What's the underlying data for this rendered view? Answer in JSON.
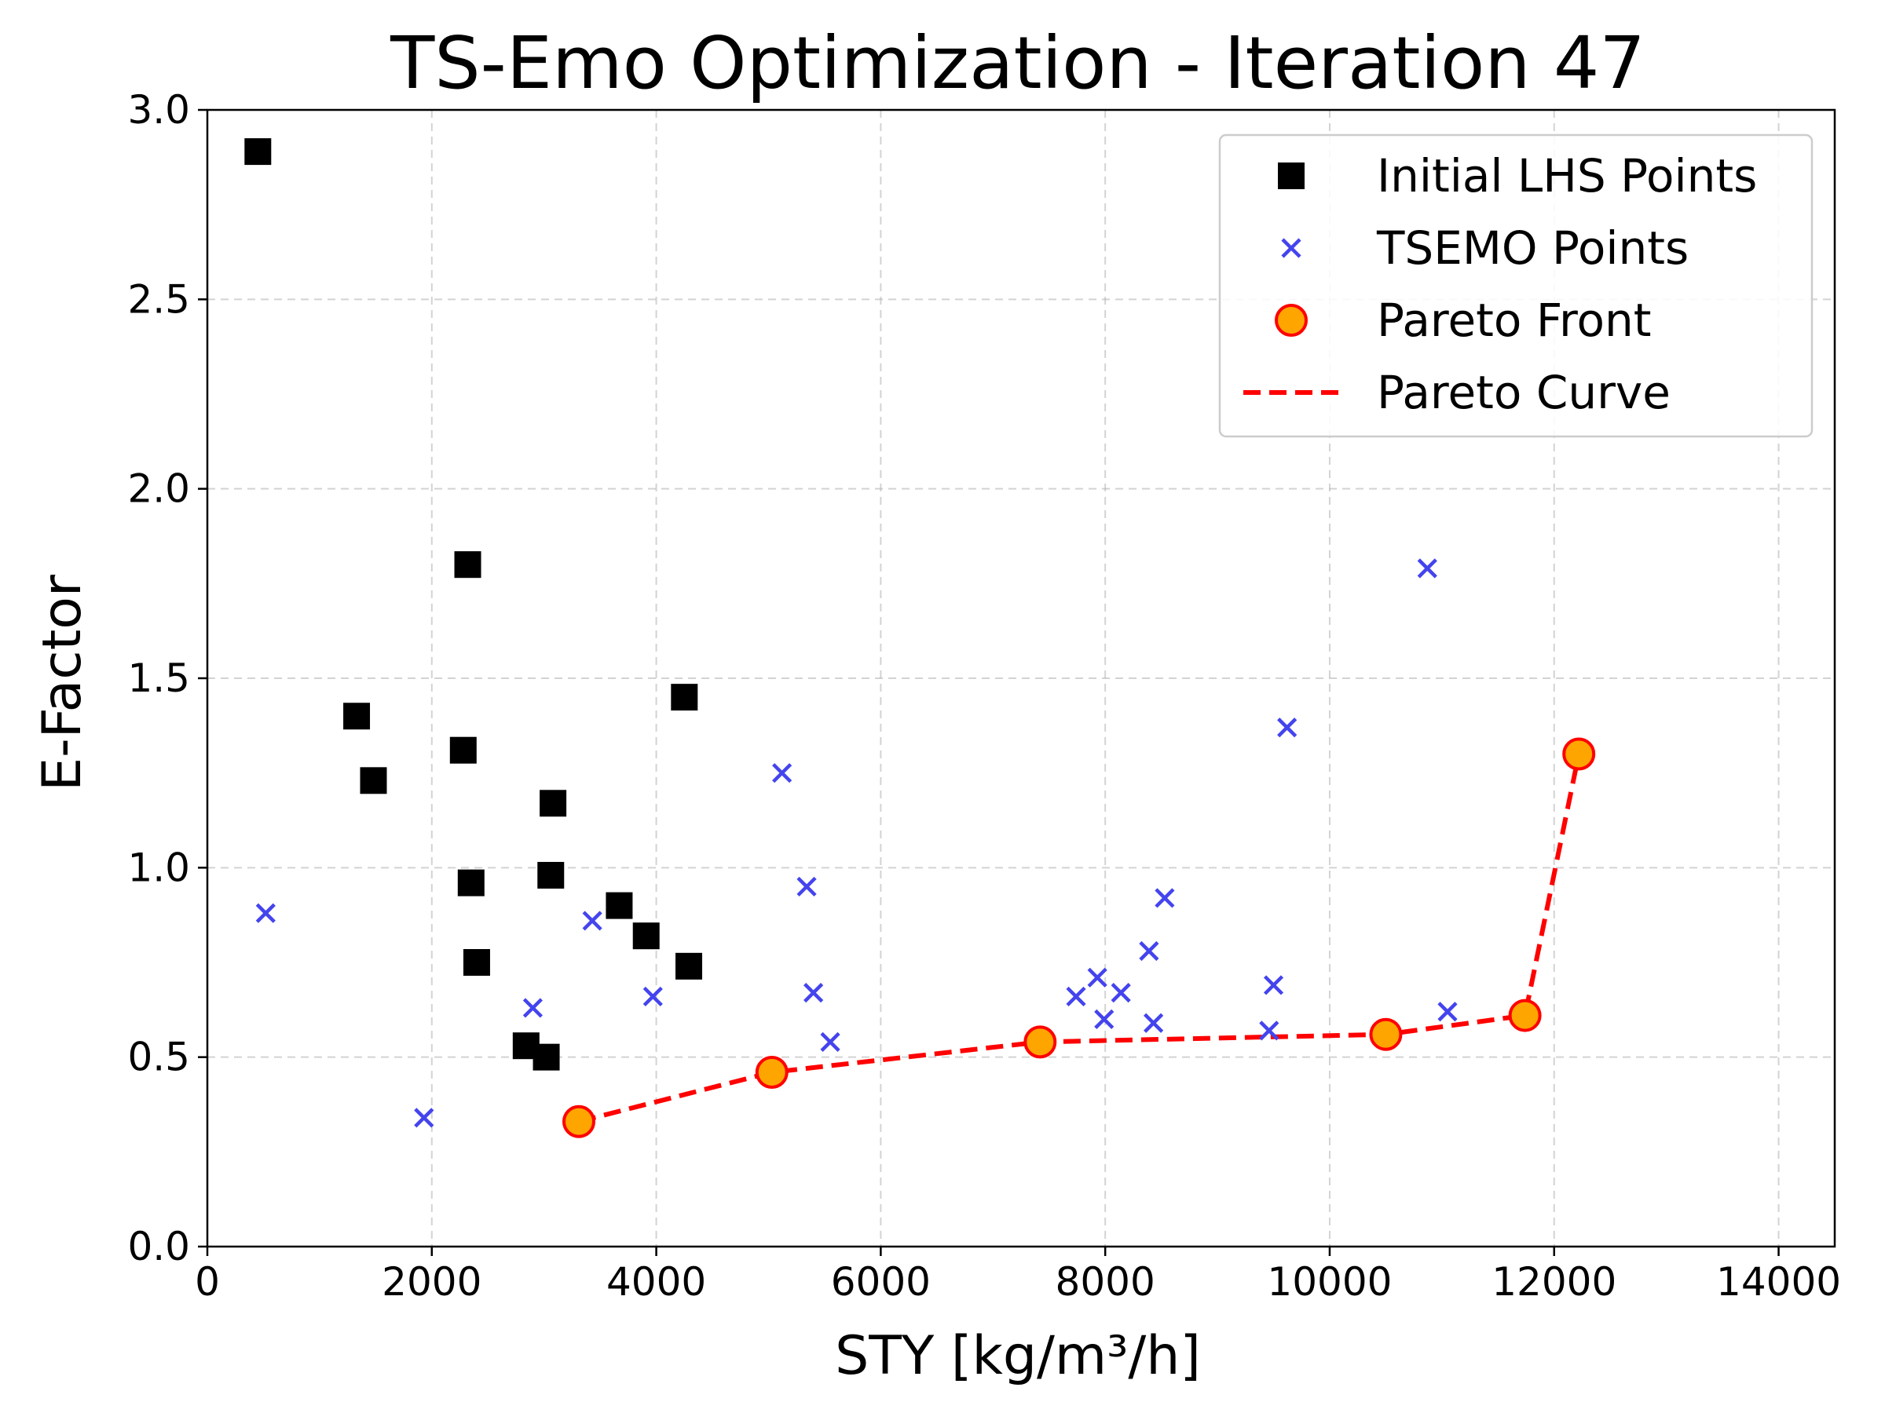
{
  "chart_data": {
    "type": "scatter",
    "title": "TS-Emo Optimization - Iteration 47",
    "xlabel": "STY [kg/m³/h]",
    "ylabel": "E-Factor",
    "xlim": [
      0,
      14500
    ],
    "ylim": [
      0,
      3.0
    ],
    "xticks": [
      0,
      2000,
      4000,
      6000,
      8000,
      10000,
      12000,
      14000
    ],
    "xtick_labels": [
      "0",
      "2000",
      "4000",
      "6000",
      "8000",
      "10000",
      "12000",
      "14000"
    ],
    "yticks": [
      0,
      0.5,
      1.0,
      1.5,
      2.0,
      2.5,
      3.0
    ],
    "ytick_labels": [
      "0.0",
      "0.5",
      "1.0",
      "1.5",
      "2.0",
      "2.5",
      "3.0"
    ],
    "grid": true,
    "legend_position": "top-right",
    "series": [
      {
        "name": "Initial LHS Points",
        "marker": "square",
        "color": "#000000",
        "points": [
          [
            450,
            2.89
          ],
          [
            2320,
            1.8
          ],
          [
            1330,
            1.4
          ],
          [
            1480,
            1.23
          ],
          [
            2280,
            1.31
          ],
          [
            4250,
            1.45
          ],
          [
            3080,
            1.17
          ],
          [
            2350,
            0.96
          ],
          [
            3060,
            0.98
          ],
          [
            3670,
            0.9
          ],
          [
            3910,
            0.82
          ],
          [
            2400,
            0.75
          ],
          [
            4290,
            0.74
          ],
          [
            2840,
            0.53
          ],
          [
            3020,
            0.5
          ]
        ]
      },
      {
        "name": "TSEMO Points",
        "marker": "x",
        "color": "#4444ee",
        "points": [
          [
            520,
            0.88
          ],
          [
            1930,
            0.34
          ],
          [
            2900,
            0.63
          ],
          [
            3430,
            0.86
          ],
          [
            3970,
            0.66
          ],
          [
            5120,
            1.25
          ],
          [
            5340,
            0.95
          ],
          [
            5400,
            0.67
          ],
          [
            5550,
            0.54
          ],
          [
            7740,
            0.66
          ],
          [
            7930,
            0.71
          ],
          [
            7990,
            0.6
          ],
          [
            8140,
            0.67
          ],
          [
            8390,
            0.78
          ],
          [
            8430,
            0.59
          ],
          [
            8530,
            0.92
          ],
          [
            9460,
            0.57
          ],
          [
            9500,
            0.69
          ],
          [
            9620,
            1.37
          ],
          [
            10870,
            1.79
          ],
          [
            11050,
            0.62
          ]
        ]
      },
      {
        "name": "Pareto Front",
        "marker": "circle",
        "color": "#ffa500",
        "edge_color": "#ff0000",
        "points": [
          [
            3310,
            0.33
          ],
          [
            5030,
            0.46
          ],
          [
            7420,
            0.54
          ],
          [
            10500,
            0.56
          ],
          [
            11740,
            0.61
          ],
          [
            12220,
            1.3
          ]
        ]
      },
      {
        "name": "Pareto Curve",
        "marker": "dashed-line",
        "color": "#ff0000",
        "points": [
          [
            3310,
            0.33
          ],
          [
            5030,
            0.46
          ],
          [
            7420,
            0.54
          ],
          [
            10500,
            0.56
          ],
          [
            11740,
            0.61
          ],
          [
            12220,
            1.3
          ]
        ]
      }
    ]
  }
}
